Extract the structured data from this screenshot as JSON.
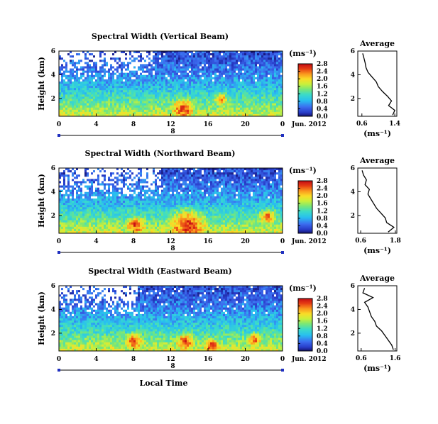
{
  "chart_data": [
    {
      "type": "heatmap",
      "title": "Spectral Width (Vertical Beam)",
      "ylabel": "Height (km)",
      "x_ticks": [
        "0",
        "4",
        "8",
        "12",
        "16",
        "20",
        "0"
      ],
      "y_ticks": [
        "6",
        "4",
        "2"
      ],
      "xlim": [
        0,
        24
      ],
      "ylim": [
        0.5,
        6
      ],
      "day_label": "8",
      "date_label": "Jun. 2012",
      "colorbar": {
        "unit": "(ms⁻¹)",
        "ticks": [
          "0.0",
          "0.4",
          "0.8",
          "1.2",
          "1.6",
          "2.0",
          "2.4",
          "2.8"
        ],
        "range": [
          0,
          2.8
        ]
      },
      "profile": {
        "title": "Average",
        "xlabel": "(ms⁻¹)",
        "x_ticks": [
          "0.6",
          "1.4"
        ],
        "xlim": [
          0.5,
          1.45
        ],
        "y_ticks": [
          "6",
          "4",
          "2"
        ],
        "ylim": [
          0.5,
          6
        ],
        "heights": [
          0.6,
          1.0,
          1.4,
          1.8,
          2.2,
          2.6,
          3.0,
          3.4,
          3.8,
          4.2,
          4.6,
          5.0,
          5.4,
          5.8
        ],
        "values": [
          1.35,
          1.4,
          1.25,
          1.32,
          1.22,
          1.1,
          1.0,
          0.95,
          0.85,
          0.75,
          0.7,
          0.68,
          0.65,
          0.62
        ]
      }
    },
    {
      "type": "heatmap",
      "title": "Spectral Width (Northward Beam)",
      "ylabel": "Height (km)",
      "x_ticks": [
        "0",
        "4",
        "8",
        "12",
        "16",
        "20",
        "0"
      ],
      "y_ticks": [
        "6",
        "4",
        "2"
      ],
      "xlim": [
        0,
        24
      ],
      "ylim": [
        0.5,
        6
      ],
      "day_label": "8",
      "date_label": "Jun. 2012",
      "colorbar": {
        "unit": "(ms⁻¹)",
        "ticks": [
          "0.0",
          "0.4",
          "0.8",
          "1.2",
          "1.6",
          "2.0",
          "2.4",
          "2.8"
        ],
        "range": [
          0,
          2.8
        ]
      },
      "profile": {
        "title": "Average",
        "xlabel": "(ms⁻¹)",
        "x_ticks": [
          "0.6",
          "1.8"
        ],
        "xlim": [
          0.5,
          1.85
        ],
        "y_ticks": [
          "6",
          "4",
          "2"
        ],
        "ylim": [
          0.5,
          6
        ],
        "heights": [
          0.6,
          1.0,
          1.4,
          1.8,
          2.2,
          2.6,
          3.0,
          3.4,
          3.8,
          4.2,
          4.6,
          5.0,
          5.4,
          5.8
        ],
        "values": [
          1.55,
          1.75,
          1.5,
          1.45,
          1.3,
          1.15,
          1.05,
          0.95,
          0.85,
          0.9,
          0.75,
          0.8,
          0.7,
          0.65
        ]
      }
    },
    {
      "type": "heatmap",
      "title": "Spectral Width (Eastward Beam)",
      "ylabel": "Height (km)",
      "x_ticks": [
        "0",
        "4",
        "8",
        "12",
        "16",
        "20",
        "0"
      ],
      "y_ticks": [
        "6",
        "4",
        "2"
      ],
      "xlim": [
        0,
        24
      ],
      "ylim": [
        0.5,
        6
      ],
      "day_label": "8",
      "date_label": "Jun. 2012",
      "xlabel": "Local Time",
      "colorbar": {
        "unit": "(ms⁻¹)",
        "ticks": [
          "0.0",
          "0.4",
          "0.8",
          "1.2",
          "1.6",
          "2.0",
          "2.4",
          "2.8"
        ],
        "range": [
          0,
          2.8
        ]
      },
      "profile": {
        "title": "Average",
        "xlabel": "(ms⁻¹)",
        "x_ticks": [
          "0.6",
          "1.6"
        ],
        "xlim": [
          0.5,
          1.65
        ],
        "y_ticks": [
          "6",
          "4",
          "2"
        ],
        "ylim": [
          0.5,
          6
        ],
        "heights": [
          0.6,
          1.0,
          1.4,
          1.8,
          2.2,
          2.6,
          3.0,
          3.4,
          3.8,
          4.2,
          4.6,
          5.0,
          5.4,
          5.8
        ],
        "values": [
          1.55,
          1.5,
          1.4,
          1.3,
          1.2,
          1.05,
          1.0,
          0.9,
          0.85,
          0.8,
          0.7,
          0.95,
          0.65,
          0.7
        ]
      }
    }
  ]
}
